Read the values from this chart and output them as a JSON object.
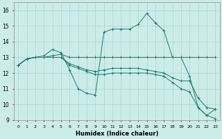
{
  "xlabel": "Humidex (Indice chaleur)",
  "background_color": "#ccecea",
  "grid_color": "#aad4d2",
  "line_color": "#1a7a6e",
  "xlim": [
    -0.5,
    23.5
  ],
  "ylim": [
    9,
    16.5
  ],
  "xticks": [
    0,
    1,
    2,
    3,
    4,
    5,
    6,
    7,
    8,
    9,
    10,
    11,
    12,
    13,
    14,
    15,
    16,
    17,
    18,
    19,
    20,
    21,
    22,
    23
  ],
  "yticks": [
    9,
    10,
    11,
    12,
    13,
    14,
    15,
    16
  ],
  "lines": [
    {
      "x": [
        0,
        1,
        2,
        3,
        4,
        5,
        6,
        7,
        8,
        9,
        10,
        11,
        12,
        13,
        14,
        15,
        16,
        17,
        18,
        19,
        20,
        21,
        22,
        23
      ],
      "y": [
        12.5,
        12.9,
        13.0,
        13.1,
        13.5,
        13.3,
        12.2,
        11.0,
        10.7,
        10.6,
        14.6,
        14.8,
        14.8,
        14.8,
        15.1,
        15.8,
        15.2,
        14.7,
        13.0,
        13.0,
        11.8,
        9.8,
        9.3,
        9.7
      ]
    },
    {
      "x": [
        0,
        1,
        2,
        3,
        4,
        5,
        6,
        7,
        8,
        9,
        10,
        11,
        12,
        13,
        14,
        15,
        16,
        17,
        18,
        19,
        20,
        21,
        22,
        23
      ],
      "y": [
        12.5,
        12.9,
        13.0,
        13.0,
        13.1,
        13.2,
        13.0,
        13.0,
        13.0,
        13.0,
        13.0,
        13.0,
        13.0,
        13.0,
        13.0,
        13.0,
        13.0,
        13.0,
        13.0,
        13.0,
        13.0,
        13.0,
        13.0,
        13.0
      ]
    },
    {
      "x": [
        0,
        1,
        2,
        3,
        4,
        5,
        6,
        7,
        8,
        9,
        10,
        11,
        12,
        13,
        14,
        15,
        16,
        17,
        18,
        19,
        20,
        21,
        22,
        23
      ],
      "y": [
        12.5,
        12.9,
        13.0,
        13.0,
        13.0,
        13.0,
        12.6,
        12.4,
        12.2,
        12.1,
        12.2,
        12.3,
        12.3,
        12.3,
        12.3,
        12.2,
        12.1,
        12.0,
        11.7,
        11.5,
        11.5,
        10.4,
        9.8,
        9.7
      ]
    },
    {
      "x": [
        0,
        1,
        2,
        3,
        4,
        5,
        6,
        7,
        8,
        9,
        10,
        11,
        12,
        13,
        14,
        15,
        16,
        17,
        18,
        19,
        20,
        21,
        22,
        23
      ],
      "y": [
        12.5,
        12.9,
        13.0,
        13.0,
        13.0,
        13.0,
        12.5,
        12.3,
        12.1,
        11.9,
        11.9,
        12.0,
        12.0,
        12.0,
        12.0,
        12.0,
        11.9,
        11.8,
        11.4,
        11.0,
        10.8,
        9.8,
        9.3,
        9.1
      ]
    }
  ]
}
